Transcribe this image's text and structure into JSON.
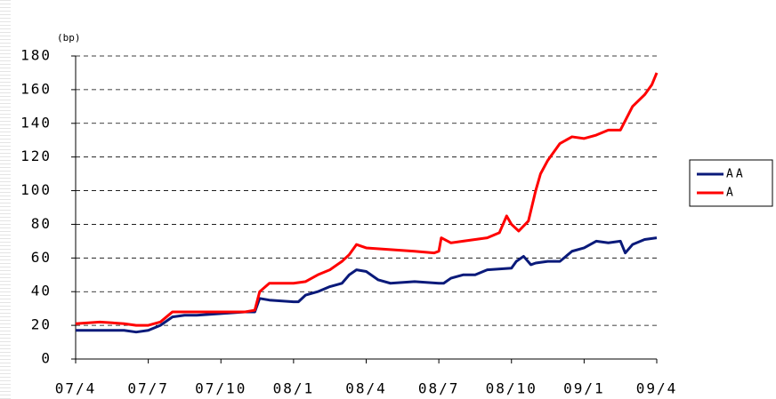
{
  "chart_data": {
    "type": "line",
    "y_label": "(bp)",
    "xlim": [
      0,
      24
    ],
    "xticks": [
      {
        "value": 0,
        "label": "07/4"
      },
      {
        "value": 3,
        "label": "07/7"
      },
      {
        "value": 6,
        "label": "07/10"
      },
      {
        "value": 9,
        "label": "08/1"
      },
      {
        "value": 12,
        "label": "08/4"
      },
      {
        "value": 15,
        "label": "08/7"
      },
      {
        "value": 18,
        "label": "08/10"
      },
      {
        "value": 21,
        "label": "09/1"
      },
      {
        "value": 24,
        "label": "09/4"
      }
    ],
    "ylim": [
      0,
      180
    ],
    "yticks": [
      0,
      20,
      40,
      60,
      80,
      100,
      120,
      140,
      160,
      180
    ],
    "grid": true,
    "legend": "right",
    "series": [
      {
        "name": "AA",
        "color": "#0a1a7a",
        "x": [
          0,
          1,
          2,
          2.5,
          3,
          3.5,
          4,
          4.5,
          5,
          6,
          7,
          7.4,
          7.6,
          8,
          9,
          9.2,
          9.5,
          10,
          10.5,
          11,
          11.3,
          11.6,
          12,
          12.5,
          13,
          14,
          15,
          15.2,
          15.5,
          16,
          16.5,
          17,
          18,
          18.2,
          18.5,
          18.8,
          19,
          19.5,
          20,
          20.5,
          21,
          21.5,
          22,
          22.5,
          22.7,
          23,
          23.5,
          24
        ],
        "values": [
          17,
          17,
          17,
          16,
          17,
          20,
          25,
          26,
          26,
          27,
          28,
          28,
          36,
          35,
          34,
          34,
          38,
          40,
          43,
          45,
          50,
          53,
          52,
          47,
          45,
          46,
          45,
          45,
          48,
          50,
          50,
          53,
          54,
          58,
          61,
          56,
          57,
          58,
          58,
          64,
          66,
          70,
          69,
          70,
          63,
          68,
          71,
          72
        ]
      },
      {
        "name": "A",
        "color": "#ff0000",
        "x": [
          0,
          1,
          2,
          2.5,
          3,
          3.5,
          4,
          5,
          6,
          7,
          7.4,
          7.6,
          8,
          9,
          9.5,
          10,
          10.5,
          11,
          11.3,
          11.6,
          12,
          13,
          14,
          14.8,
          15,
          15.1,
          15.5,
          16,
          17,
          17.5,
          17.8,
          18,
          18.3,
          18.7,
          19,
          19.2,
          19.5,
          20,
          20.5,
          21,
          21.5,
          22,
          22.5,
          23,
          23.5,
          23.8,
          24
        ],
        "values": [
          21,
          22,
          21,
          20,
          20,
          22,
          28,
          28,
          28,
          28,
          29,
          40,
          45,
          45,
          46,
          50,
          53,
          58,
          62,
          68,
          66,
          65,
          64,
          63,
          64,
          72,
          69,
          70,
          72,
          75,
          85,
          80,
          76,
          82,
          100,
          110,
          118,
          128,
          132,
          131,
          133,
          136,
          136,
          150,
          157,
          163,
          170
        ]
      }
    ]
  }
}
